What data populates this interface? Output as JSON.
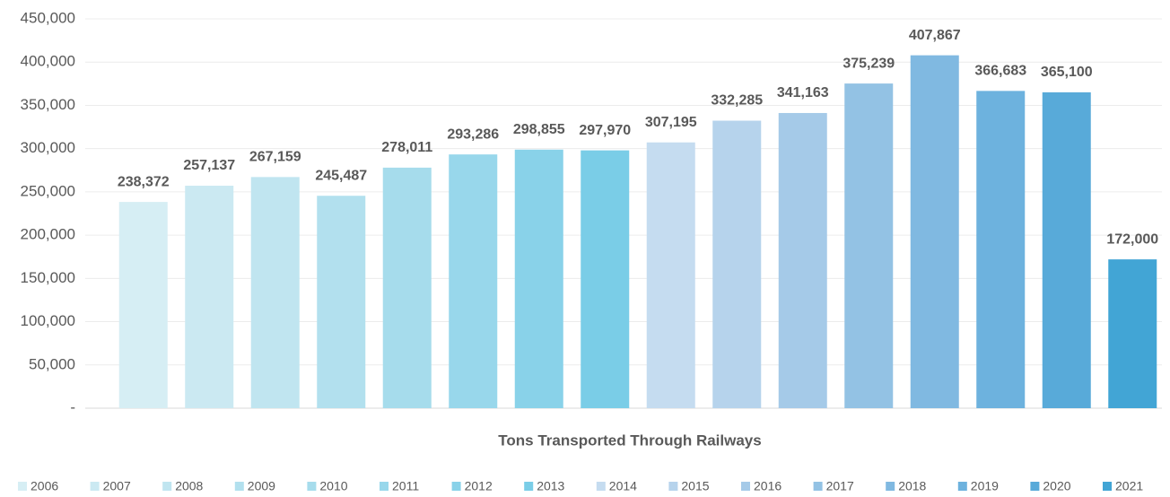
{
  "chart_data": {
    "type": "bar",
    "x_label": "Tons Transported Through Railways",
    "categories": [
      null
    ],
    "series": [
      {
        "name": "2006",
        "color": "#d6eef4",
        "values": [
          238372
        ],
        "value_labels": [
          "238,372"
        ]
      },
      {
        "name": "2007",
        "color": "#cbe9f2",
        "values": [
          257137
        ],
        "value_labels": [
          "257,137"
        ]
      },
      {
        "name": "2008",
        "color": "#c0e5f0",
        "values": [
          267159
        ],
        "value_labels": [
          "267,159"
        ]
      },
      {
        "name": "2009",
        "color": "#b2e0ee",
        "values": [
          245487
        ],
        "value_labels": [
          "245,487"
        ]
      },
      {
        "name": "2010",
        "color": "#a6dcec",
        "values": [
          278011
        ],
        "value_labels": [
          "278,011"
        ]
      },
      {
        "name": "2011",
        "color": "#98d7eb",
        "values": [
          293286
        ],
        "value_labels": [
          "293,286"
        ]
      },
      {
        "name": "2012",
        "color": "#89d2e9",
        "values": [
          298855
        ],
        "value_labels": [
          "298,855"
        ]
      },
      {
        "name": "2013",
        "color": "#7acde7",
        "values": [
          297970
        ],
        "value_labels": [
          "297,970"
        ]
      },
      {
        "name": "2014",
        "color": "#c5dcf0",
        "values": [
          307195
        ],
        "value_labels": [
          "307,195"
        ]
      },
      {
        "name": "2015",
        "color": "#b6d3ec",
        "values": [
          332285
        ],
        "value_labels": [
          "332,285"
        ]
      },
      {
        "name": "2016",
        "color": "#a5cae8",
        "values": [
          341163
        ],
        "value_labels": [
          "341,163"
        ]
      },
      {
        "name": "2017",
        "color": "#93c2e4",
        "values": [
          375239
        ],
        "value_labels": [
          "375,239"
        ]
      },
      {
        "name": "2018",
        "color": "#80b9e1",
        "values": [
          407867
        ],
        "value_labels": [
          "407,867"
        ]
      },
      {
        "name": "2019",
        "color": "#6db2de",
        "values": [
          366683
        ],
        "value_labels": [
          "366,683"
        ]
      },
      {
        "name": "2020",
        "color": "#58aad9",
        "values": [
          365100
        ],
        "value_labels": [
          "365,100"
        ]
      },
      {
        "name": "2021",
        "color": "#42a5d5",
        "values": [
          172000
        ],
        "value_labels": [
          "172,000"
        ]
      }
    ],
    "ylim": [
      0,
      450000
    ],
    "yticks": [
      {
        "value": 0,
        "label": "-"
      },
      {
        "value": 50000,
        "label": "50,000"
      },
      {
        "value": 100000,
        "label": "100,000"
      },
      {
        "value": 150000,
        "label": "150,000"
      },
      {
        "value": 200000,
        "label": "200,000"
      },
      {
        "value": 250000,
        "label": "250,000"
      },
      {
        "value": 300000,
        "label": "300,000"
      },
      {
        "value": 350000,
        "label": "350,000"
      },
      {
        "value": 400000,
        "label": "400,000"
      },
      {
        "value": 450000,
        "label": "450,000"
      }
    ],
    "grid": true,
    "legend": "bottom"
  }
}
